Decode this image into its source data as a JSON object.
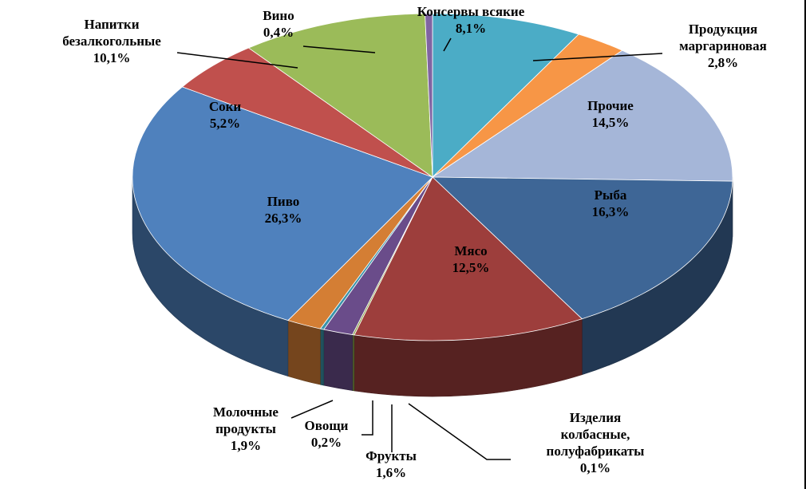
{
  "chart_data": {
    "type": "pie",
    "three_d": true,
    "legend": "none",
    "slices": [
      {
        "label": [
          "Консервы всякие"
        ],
        "value_label": "8,1%",
        "value": 8.1,
        "color": "#4BACC6"
      },
      {
        "label": [
          "Продукция",
          "маргариновая"
        ],
        "value_label": "2,8%",
        "value": 2.8,
        "color": "#F79646"
      },
      {
        "label": [
          "Прочие"
        ],
        "value_label": "14,5%",
        "value": 14.5,
        "color": "#A5B6D8"
      },
      {
        "label": [
          "Рыба"
        ],
        "value_label": "16,3%",
        "value": 16.3,
        "color": "#3E6696"
      },
      {
        "label": [
          "Мясо"
        ],
        "value_label": "12,5%",
        "value": 12.5,
        "color": "#9D3E3C"
      },
      {
        "label": [
          "Изделия",
          "колбасные,",
          "полуфабрикаты"
        ],
        "value_label": "0,1%",
        "value": 0.1,
        "color": "#8BA24A"
      },
      {
        "label": [
          "Фрукты"
        ],
        "value_label": "1,6%",
        "value": 1.6,
        "color": "#6A4C8A"
      },
      {
        "label": [
          "Овощи"
        ],
        "value_label": "0,2%",
        "value": 0.2,
        "color": "#3A93A9"
      },
      {
        "label": [
          "Молочные",
          "продукты"
        ],
        "value_label": "1,9%",
        "value": 1.9,
        "color": "#D47E34"
      },
      {
        "label": [
          "Пиво"
        ],
        "value_label": "26,3%",
        "value": 26.3,
        "color": "#4F81BD"
      },
      {
        "label": [
          "Соки"
        ],
        "value_label": "5,2%",
        "value": 5.2,
        "color": "#C0504D"
      },
      {
        "label": [
          "Напитки",
          "безалкогольные"
        ],
        "value_label": "10,1%",
        "value": 10.1,
        "color": "#9BBB59"
      },
      {
        "label": [
          "Вино"
        ],
        "value_label": "0,4%",
        "value": 0.4,
        "color": "#8064A2"
      }
    ]
  }
}
